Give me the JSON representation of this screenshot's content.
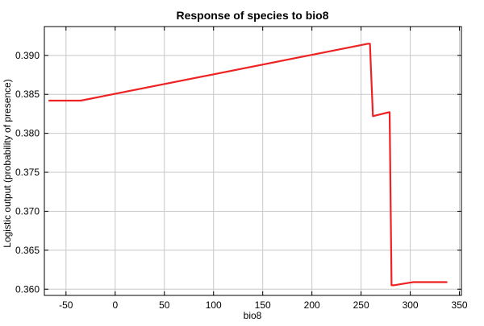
{
  "chart_data": {
    "type": "line",
    "title": "Response of species to bio8",
    "xlabel": "bio8",
    "ylabel": "Logistic output (probability of presence)",
    "xlim": [
      -72,
      352
    ],
    "ylim": [
      0.3592,
      0.3937
    ],
    "xticks": [
      -50,
      0,
      50,
      100,
      150,
      200,
      250,
      300,
      350
    ],
    "yticks": [
      0.36,
      0.365,
      0.37,
      0.375,
      0.38,
      0.385,
      0.39
    ],
    "ytick_labels": [
      "0.360",
      "0.365",
      "0.370",
      "0.375",
      "0.380",
      "0.385",
      "0.390"
    ],
    "grid": true,
    "legend": "none",
    "series": [
      {
        "color": "#ee2222",
        "x": [
          -67,
          -35,
          257,
          259,
          262,
          278,
          279,
          281,
          283,
          303,
          337
        ],
        "y": [
          0.3842,
          0.3842,
          0.3915,
          0.3915,
          0.3822,
          0.3827,
          0.3827,
          0.3605,
          0.3605,
          0.3609,
          0.3609
        ]
      }
    ]
  }
}
